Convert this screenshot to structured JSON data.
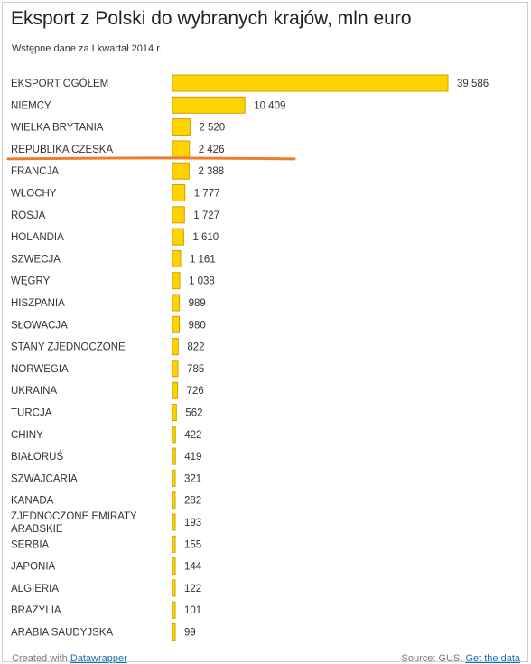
{
  "chart_data": {
    "type": "bar",
    "orientation": "horizontal",
    "title": "Eksport z Polski do wybranych krajów, mln euro",
    "subtitle": "Wstępne dane za I kwartał 2014 r.",
    "categories": [
      "EKSPORT OGÓŁEM",
      "NIEMCY",
      "WIELKA BRYTANIA",
      "REPUBLIKA CZESKA",
      "FRANCJA",
      "WŁOCHY",
      "ROSJA",
      "HOLANDIA",
      "SZWECJA",
      "WĘGRY",
      "HISZPANIA",
      "SŁOWACJA",
      "STANY ZJEDNOCZONE",
      "NORWEGIA",
      "UKRAINA",
      "TURCJA",
      "CHINY",
      "BIAŁORUŚ",
      "SZWAJCARIA",
      "KANADA",
      "ZJEDNOCZONE EMIRATY ARABSKIE",
      "SERBIA",
      "JAPONIA",
      "ALGIERIA",
      "BRAZYLIA",
      "ARABIA SAUDYJSKA"
    ],
    "values": [
      39586,
      10409,
      2520,
      2426,
      2388,
      1777,
      1727,
      1610,
      1161,
      1038,
      989,
      980,
      822,
      785,
      726,
      562,
      422,
      419,
      321,
      282,
      193,
      155,
      144,
      122,
      101,
      99
    ],
    "value_labels": [
      "39 586",
      "10 409",
      "2 520",
      "2 426",
      "2 388",
      "1 777",
      "1 727",
      "1 610",
      "1 161",
      "1 038",
      "989",
      "980",
      "822",
      "785",
      "726",
      "562",
      "422",
      "419",
      "321",
      "282",
      "193",
      "155",
      "144",
      "122",
      "101",
      "99"
    ],
    "bar_color": "#ffd200",
    "bar_edge_color": "#c9a400",
    "highlight_underline_color": "#f07c2d",
    "highlighted_category": "REPUBLIKA CZESKA",
    "grid": false,
    "legend": "none"
  },
  "footer": {
    "created_prefix": "Created with ",
    "created_link": "Datawrapper",
    "source_prefix": "Source: GUS, ",
    "source_link": "Get the data"
  }
}
